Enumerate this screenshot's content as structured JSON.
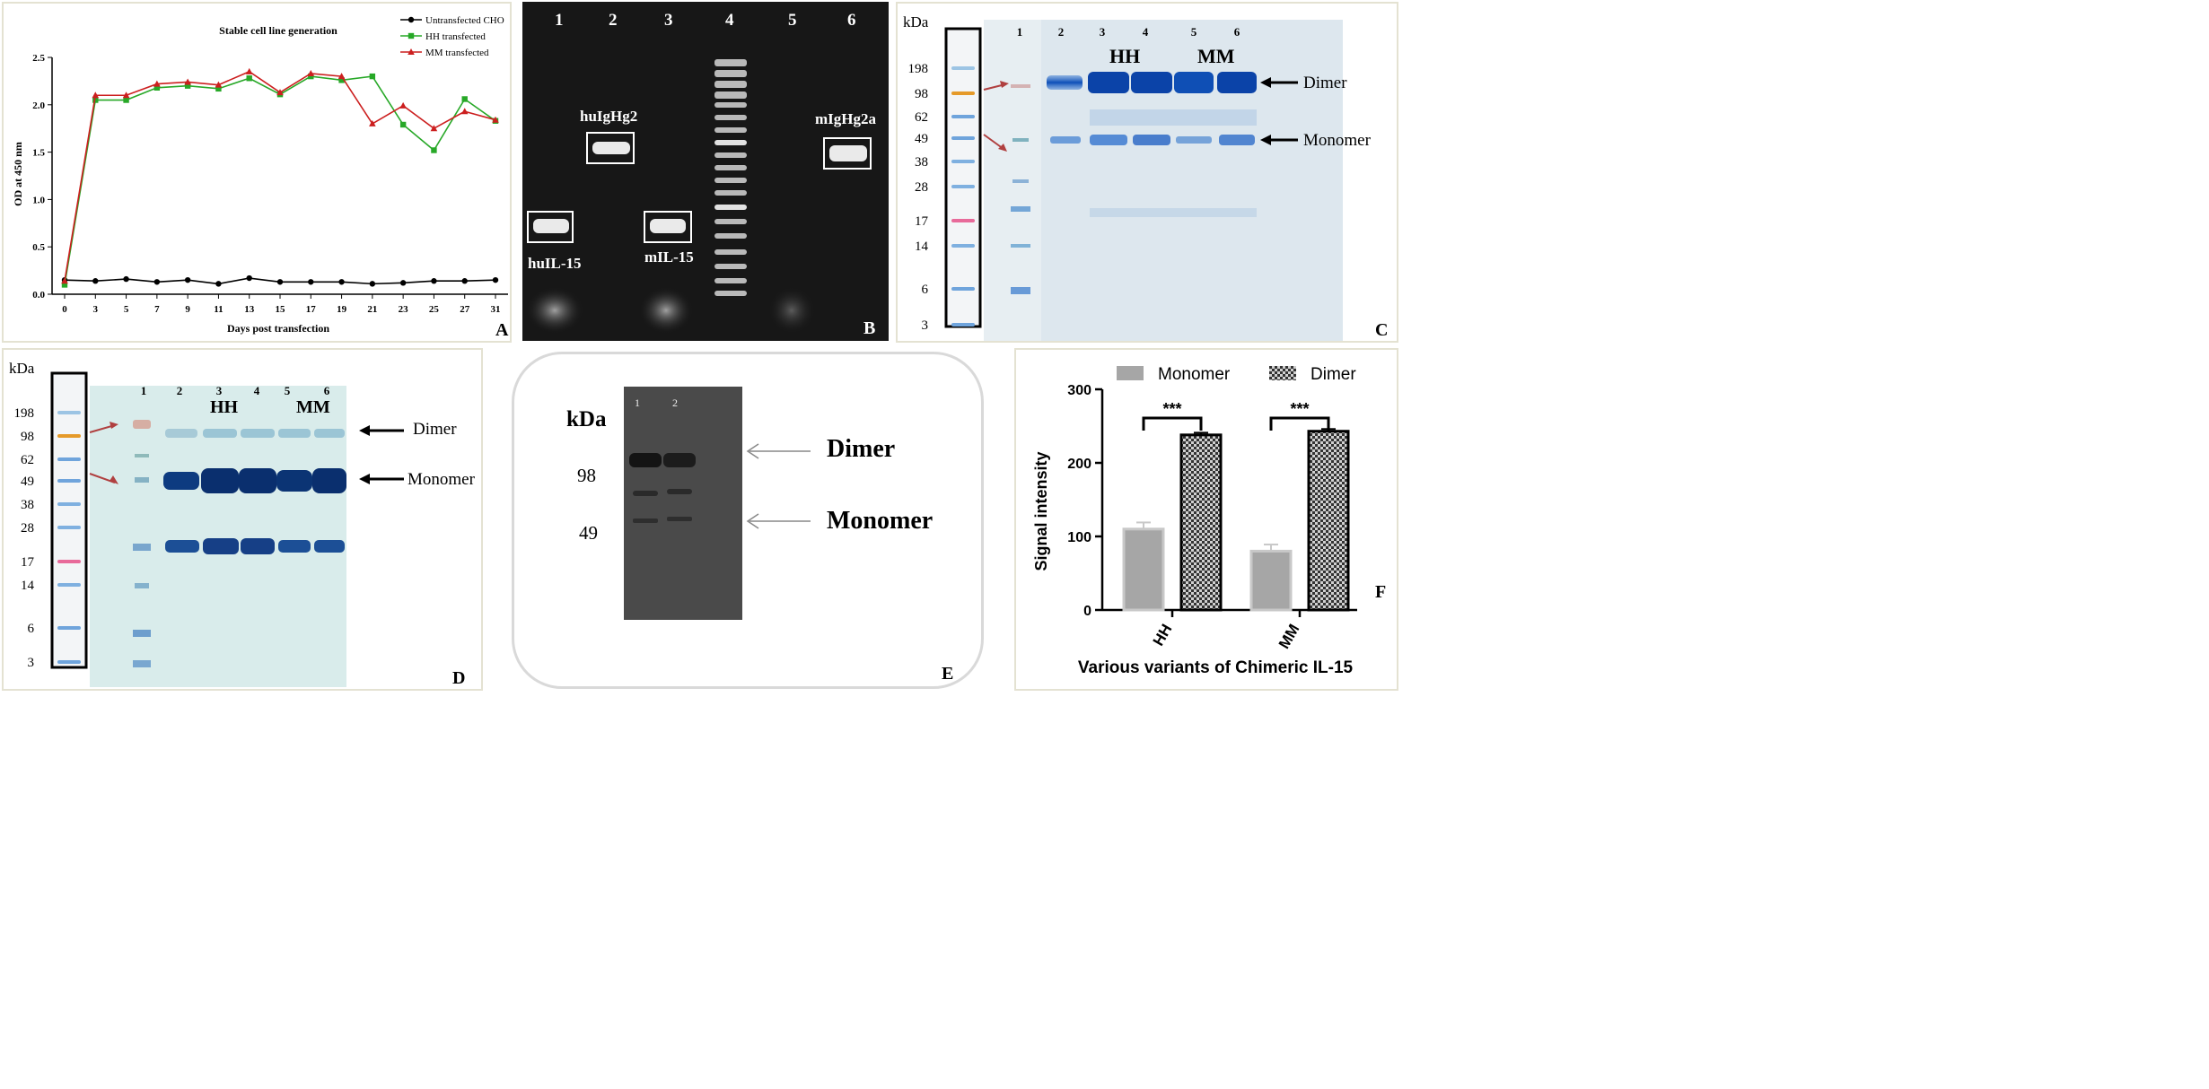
{
  "panel_a": {
    "letter": "A",
    "chart_data": {
      "type": "line",
      "title": "Stable cell line generation",
      "xlabel": "Days post transfection",
      "ylabel": "OD at 450 nm",
      "x": [
        0,
        3,
        5,
        7,
        9,
        11,
        13,
        15,
        17,
        19,
        21,
        23,
        25,
        27,
        31
      ],
      "xticks": [
        "0",
        "3",
        "5",
        "7",
        "9",
        "11",
        "13",
        "15",
        "17",
        "19",
        "21",
        "23",
        "25",
        "27",
        "31"
      ],
      "yticks": [
        "0.0",
        "0.5",
        "1.0",
        "1.5",
        "2.0",
        "2.5"
      ],
      "ylim": [
        0,
        2.5
      ],
      "grid": false,
      "legend_position": "top-right",
      "series": [
        {
          "name": "Untransfected CHO",
          "color": "#000000",
          "marker": "circle",
          "values": [
            0.15,
            0.14,
            0.16,
            0.13,
            0.15,
            0.11,
            0.17,
            0.13,
            0.13,
            0.13,
            0.11,
            0.12,
            0.14,
            0.14,
            0.15
          ]
        },
        {
          "name": "HH transfected",
          "color": "#27a827",
          "marker": "square",
          "values": [
            0.1,
            2.05,
            2.05,
            2.18,
            2.2,
            2.17,
            2.28,
            2.11,
            2.3,
            2.26,
            2.3,
            1.79,
            1.52,
            2.06,
            1.83
          ]
        },
        {
          "name": "MM transfected",
          "color": "#cc1f1f",
          "marker": "triangle",
          "values": [
            0.14,
            2.1,
            2.1,
            2.22,
            2.24,
            2.21,
            2.35,
            2.13,
            2.33,
            2.3,
            1.8,
            1.99,
            1.75,
            1.93,
            1.84
          ]
        }
      ]
    }
  },
  "panel_b": {
    "letter": "B",
    "lanes": [
      "1",
      "2",
      "3",
      "4",
      "5",
      "6"
    ],
    "labels": {
      "lane1": "huIL-15",
      "lane2": "huIgHg2",
      "lane3": "mIL-15",
      "lane6": "mIgHg2a"
    }
  },
  "panel_c": {
    "letter": "C",
    "kda_label": "kDa",
    "markers": [
      "198",
      "98",
      "62",
      "49",
      "38",
      "28",
      "17",
      "14",
      "6",
      "3"
    ],
    "lanes": [
      "1",
      "2",
      "3",
      "4",
      "5",
      "6"
    ],
    "group_labels": [
      "HH",
      "MM"
    ],
    "dimer_label": "Dimer",
    "monomer_label": "Monomer"
  },
  "panel_d": {
    "letter": "D",
    "kda_label": "kDa",
    "markers": [
      "198",
      "98",
      "62",
      "49",
      "38",
      "28",
      "17",
      "14",
      "6",
      "3"
    ],
    "lanes": [
      "1",
      "2",
      "3",
      "4",
      "5",
      "6"
    ],
    "group_labels": [
      "HH",
      "MM"
    ],
    "dimer_label": "Dimer",
    "monomer_label": "Monomer"
  },
  "panel_e": {
    "letter": "E",
    "kda_label": "kDa",
    "markers": [
      "98",
      "49"
    ],
    "lanes": [
      "1",
      "2"
    ],
    "dimer_label": "Dimer",
    "monomer_label": "Monomer"
  },
  "panel_f": {
    "letter": "F",
    "chart_data": {
      "type": "bar",
      "xlabel": "Various variants of Chimeric IL-15",
      "ylabel": "Signal intensity",
      "categories": [
        "HH",
        "MM"
      ],
      "ylim": [
        0,
        300
      ],
      "yticks": [
        "0",
        "100",
        "200",
        "300"
      ],
      "legend_position": "top",
      "significance": [
        "***",
        "***"
      ],
      "series": [
        {
          "name": "Monomer",
          "color": "#a6a6a6",
          "values": [
            110,
            80
          ],
          "errors": [
            9,
            9
          ]
        },
        {
          "name": "Dimer",
          "color": "#444444",
          "pattern": "checker",
          "values": [
            238,
            243
          ],
          "errors": [
            3,
            3
          ]
        }
      ]
    }
  }
}
